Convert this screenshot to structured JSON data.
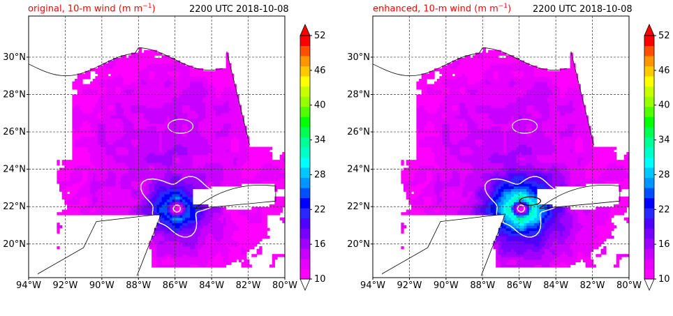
{
  "panels": [
    {
      "title_left": "original, 10-m wind (m m",
      "title_sup": "−1",
      "title_close": ")",
      "title_right": "2200 UTC 2018-10-08"
    },
    {
      "title_left": "enhanced, 10-m wind (m m",
      "title_sup": "−1",
      "title_close": ")",
      "title_right": "2200 UTC 2018-10-08"
    }
  ],
  "chart_data": [
    {
      "type": "heatmap",
      "title": "original, 10-m wind (m m−1)",
      "subtitle": "2200 UTC 2018-10-08",
      "x_ticks": [
        "94°W",
        "92°W",
        "90°W",
        "88°W",
        "86°W",
        "84°W",
        "82°W",
        "80°W"
      ],
      "y_ticks": [
        "20°N",
        "22°N",
        "24°N",
        "26°N",
        "28°N",
        "30°N"
      ],
      "xlim": [
        -94,
        -80
      ],
      "ylim": [
        18.2,
        32.2
      ],
      "colorbar_ticks": [
        10,
        16,
        22,
        28,
        34,
        40,
        46,
        52
      ],
      "colorbar_range": [
        10,
        52
      ],
      "storm_center": {
        "lon": -85.9,
        "lat": 21.9
      },
      "max_wind_core": 26,
      "grid": true
    },
    {
      "type": "heatmap",
      "title": "enhanced, 10-m wind (m m−1)",
      "subtitle": "2200 UTC 2018-10-08",
      "x_ticks": [
        "94°W",
        "92°W",
        "90°W",
        "88°W",
        "86°W",
        "84°W",
        "82°W",
        "80°W"
      ],
      "y_ticks": [
        "20°N",
        "22°N",
        "24°N",
        "26°N",
        "28°N",
        "30°N"
      ],
      "xlim": [
        -94,
        -80
      ],
      "ylim": [
        18.2,
        32.2
      ],
      "colorbar_ticks": [
        10,
        16,
        22,
        28,
        34,
        40,
        46,
        52
      ],
      "colorbar_range": [
        10,
        52
      ],
      "storm_center": {
        "lon": -85.9,
        "lat": 21.9
      },
      "max_wind_core": 34,
      "grid": true
    }
  ],
  "colors": {
    "title_left": "#ff0000",
    "levels": [
      "#ff00ff",
      "#e600ff",
      "#c800ff",
      "#a000ff",
      "#7800ff",
      "#5000ff",
      "#2828ff",
      "#0000ff",
      "#0050ff",
      "#0096ff",
      "#00c8ff",
      "#00ffff",
      "#00ffc8",
      "#00ff96",
      "#00ff50",
      "#00ff00",
      "#50ff00",
      "#96ff00",
      "#c8ff00",
      "#ffff00",
      "#ffc800",
      "#ff9600",
      "#ff5000",
      "#ff0000"
    ]
  }
}
